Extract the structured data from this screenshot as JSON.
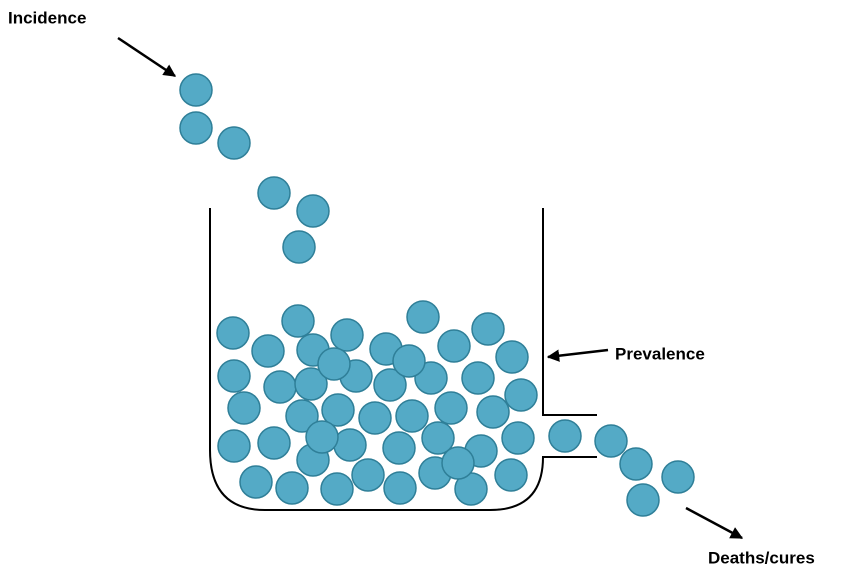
{
  "labels": {
    "incidence": "Incidence",
    "prevalence": "Prevalence",
    "outflow": "Deaths/cures"
  }
}
